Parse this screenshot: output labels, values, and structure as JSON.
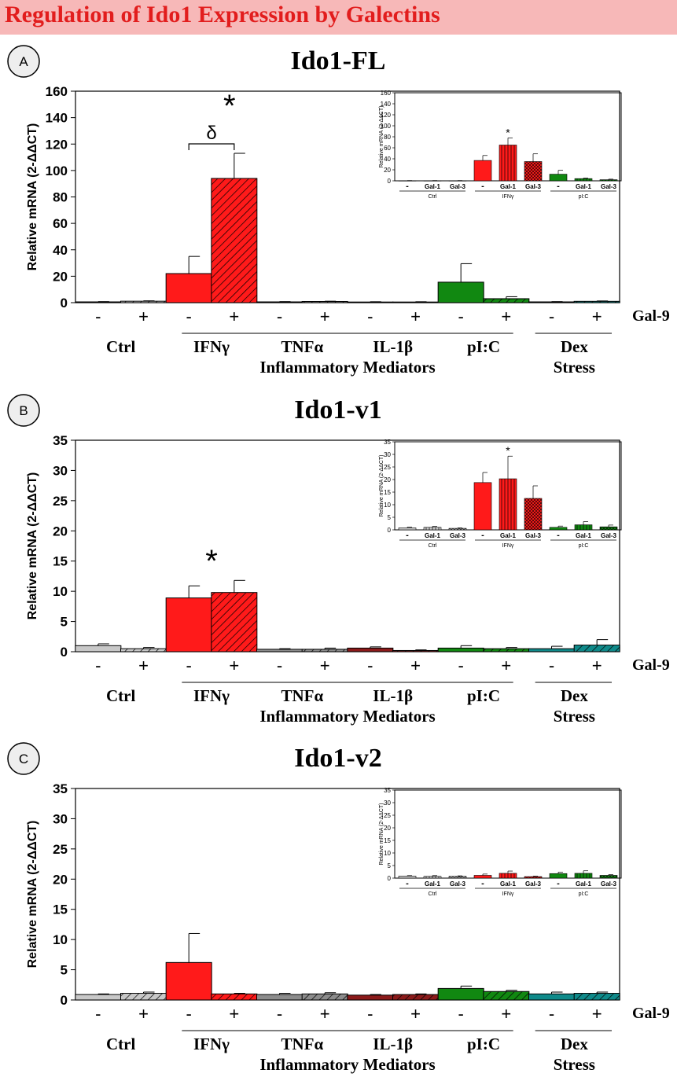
{
  "banner": {
    "title": "Regulation of Ido1 Expression by Galectins"
  },
  "legend": {
    "treatment": "Gal-9",
    "group": "Inflammatory Mediators",
    "minus": "-",
    "plus": "+"
  },
  "colors": {
    "Ctrl": "#c8c8c8",
    "IFNγ": "#ff1a1a",
    "TNFα": "#8c8c8c",
    "IL-1β": "#8b1a1a",
    "pI:C": "#118811",
    "Dex": "#0f8a8a"
  },
  "chart_data": [
    {
      "type": "bar",
      "panel": "A",
      "title": "Ido1-FL",
      "ylabel": "Relative mRNA (2-ΔΔCT)",
      "ylim": [
        0,
        160
      ],
      "yticks": [
        0,
        20,
        40,
        60,
        80,
        100,
        120,
        140,
        160
      ],
      "groups": [
        {
          "label": "Ctrl",
          "sub": ""
        },
        {
          "label": "IFNγ",
          "sub": ""
        },
        {
          "label": "TNFα",
          "sub": ""
        },
        {
          "label": "IL-1β",
          "sub": ""
        },
        {
          "label": "pI:C",
          "sub": ""
        },
        {
          "label": "Dex",
          "sub": "Stress"
        }
      ],
      "series": [
        {
          "name": "-",
          "values": [
            0.6,
            22,
            0.6,
            0.5,
            15.5,
            0.6
          ],
          "errors": [
            0.2,
            13,
            0.2,
            0.2,
            14,
            0.2
          ]
        },
        {
          "name": "+",
          "values": [
            1.1,
            94,
            0.9,
            0.5,
            3.0,
            1.0
          ],
          "errors": [
            0.3,
            19,
            0.2,
            0.2,
            1.5,
            0.3
          ]
        }
      ],
      "annotations": {
        "star": "*",
        "delta": "δ"
      },
      "inset": {
        "ylabel": "Relative mRNA (2-ΔΔCT)",
        "ylim": [
          0,
          160
        ],
        "yticks": [
          0,
          20,
          40,
          60,
          80,
          100,
          120,
          140,
          160
        ],
        "groups": [
          "Ctrl",
          "IFNγ",
          "pI:C"
        ],
        "categories": [
          "-",
          "Gal-1",
          "Gal-3"
        ],
        "values": [
          [
            0.3,
            0.3,
            0.3
          ],
          [
            37,
            65,
            35
          ],
          [
            12,
            4,
            2
          ]
        ],
        "errors": [
          [
            0.2,
            0.2,
            0.2
          ],
          [
            9,
            13,
            14
          ],
          [
            7,
            1,
            1
          ]
        ],
        "star": "*"
      }
    },
    {
      "type": "bar",
      "panel": "B",
      "title": "Ido1-v1",
      "ylabel": "Relative mRNA (2-ΔΔCT)",
      "ylim": [
        0,
        35
      ],
      "yticks": [
        0,
        5,
        10,
        15,
        20,
        25,
        30,
        35
      ],
      "groups": [
        {
          "label": "Ctrl",
          "sub": ""
        },
        {
          "label": "IFNγ",
          "sub": ""
        },
        {
          "label": "TNFα",
          "sub": ""
        },
        {
          "label": "IL-1β",
          "sub": ""
        },
        {
          "label": "pI:C",
          "sub": ""
        },
        {
          "label": "Dex",
          "sub": "Stress"
        }
      ],
      "series": [
        {
          "name": "-",
          "values": [
            1.0,
            8.9,
            0.4,
            0.6,
            0.6,
            0.5
          ],
          "errors": [
            0.3,
            2.0,
            0.1,
            0.2,
            0.4,
            0.4
          ]
        },
        {
          "name": "+",
          "values": [
            0.5,
            9.8,
            0.4,
            0.2,
            0.5,
            1.1
          ],
          "errors": [
            0.2,
            2.0,
            0.2,
            0.1,
            0.2,
            0.9
          ]
        }
      ],
      "annotations": {
        "star": "*"
      },
      "inset": {
        "ylabel": "Relative mRNA (2-ΔΔCT)",
        "ylim": [
          0,
          35
        ],
        "yticks": [
          0,
          5,
          10,
          15,
          20,
          25,
          30,
          35
        ],
        "groups": [
          "Ctrl",
          "IFNγ",
          "pI:C"
        ],
        "categories": [
          "-",
          "Gal-1",
          "Gal-3"
        ],
        "values": [
          [
            0.8,
            1.0,
            0.6
          ],
          [
            18.8,
            20.3,
            12.5
          ],
          [
            1.0,
            2.0,
            1.2
          ]
        ],
        "errors": [
          [
            0.3,
            0.4,
            0.2
          ],
          [
            4.0,
            9.0,
            5.0
          ],
          [
            0.5,
            1.3,
            0.7
          ]
        ],
        "star": "*"
      }
    },
    {
      "type": "bar",
      "panel": "C",
      "title": "Ido1-v2",
      "ylabel": "Relative mRNA (2-ΔΔCT)",
      "ylim": [
        0,
        35
      ],
      "yticks": [
        0,
        5,
        10,
        15,
        20,
        25,
        30,
        35
      ],
      "groups": [
        {
          "label": "Ctrl",
          "sub": ""
        },
        {
          "label": "IFNγ",
          "sub": ""
        },
        {
          "label": "TNFα",
          "sub": ""
        },
        {
          "label": "IL-1β",
          "sub": ""
        },
        {
          "label": "pI:C",
          "sub": ""
        },
        {
          "label": "Dex",
          "sub": "Stress"
        }
      ],
      "series": [
        {
          "name": "-",
          "values": [
            0.9,
            6.2,
            0.9,
            0.8,
            1.9,
            1.0
          ],
          "errors": [
            0.1,
            4.8,
            0.2,
            0.1,
            0.4,
            0.3
          ]
        },
        {
          "name": "+",
          "values": [
            1.1,
            1.0,
            1.0,
            0.9,
            1.4,
            1.1
          ],
          "errors": [
            0.2,
            0.1,
            0.2,
            0.1,
            0.2,
            0.2
          ]
        }
      ],
      "annotations": {},
      "inset": {
        "ylabel": "Relative mRNA (2-ΔΔCT)",
        "ylim": [
          0,
          35
        ],
        "yticks": [
          0,
          5,
          10,
          15,
          20,
          25,
          30,
          35
        ],
        "groups": [
          "Ctrl",
          "IFNγ",
          "pI:C"
        ],
        "categories": [
          "-",
          "Gal-1",
          "Gal-3"
        ],
        "values": [
          [
            0.8,
            0.7,
            0.7
          ],
          [
            1.1,
            1.9,
            0.6
          ],
          [
            1.8,
            1.9,
            1.1
          ]
        ],
        "errors": [
          [
            0.2,
            0.3,
            0.2
          ],
          [
            0.5,
            0.9,
            0.2
          ],
          [
            0.6,
            1.0,
            0.3
          ]
        ],
        "star": ""
      }
    }
  ]
}
